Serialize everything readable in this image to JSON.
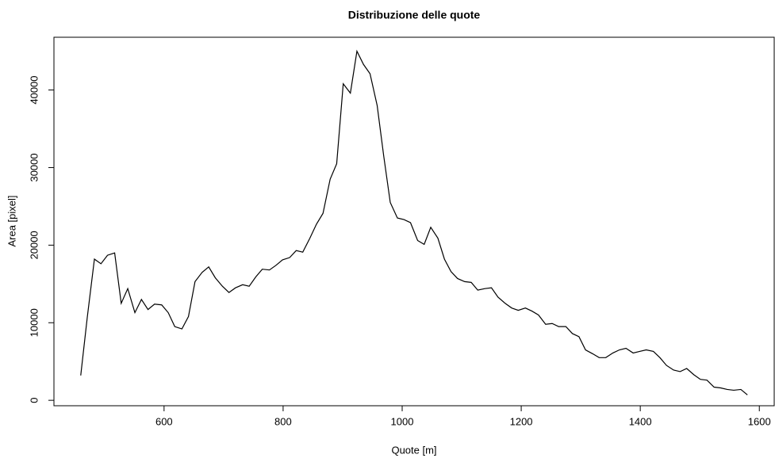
{
  "chart_data": {
    "type": "line",
    "title": "Distribuzione delle quote",
    "xlabel": "Quote [m]",
    "ylabel": "Area [pixel]",
    "x": [
      460,
      471,
      483,
      494,
      505,
      517,
      528,
      539,
      551,
      562,
      573,
      584,
      596,
      607,
      618,
      630,
      641,
      652,
      664,
      675,
      686,
      698,
      709,
      720,
      732,
      743,
      754,
      765,
      777,
      788,
      799,
      811,
      822,
      833,
      845,
      856,
      867,
      879,
      890,
      901,
      913,
      924,
      935,
      946,
      958,
      969,
      980,
      992,
      1003,
      1014,
      1026,
      1037,
      1048,
      1060,
      1071,
      1082,
      1093,
      1105,
      1116,
      1127,
      1139,
      1150,
      1161,
      1173,
      1184,
      1195,
      1207,
      1218,
      1229,
      1241,
      1252,
      1263,
      1275,
      1286,
      1297,
      1308,
      1320,
      1331,
      1342,
      1354,
      1365,
      1376,
      1388,
      1399,
      1410,
      1422,
      1433,
      1444,
      1456,
      1467,
      1478,
      1490,
      1501,
      1512,
      1524,
      1535,
      1546,
      1557,
      1569,
      1580
    ],
    "series": [
      {
        "name": "Area",
        "color": "#000000",
        "values": [
          3200,
          10700,
          18200,
          17600,
          18700,
          19000,
          12500,
          14400,
          11300,
          13000,
          11700,
          12400,
          12300,
          11300,
          9500,
          9200,
          10800,
          15300,
          16500,
          17200,
          15800,
          14700,
          13900,
          14500,
          14900,
          14700,
          15900,
          16900,
          16800,
          17400,
          18100,
          18400,
          19300,
          19100,
          20900,
          22700,
          24100,
          28500,
          30500,
          40800,
          39600,
          45000,
          43300,
          42100,
          38000,
          31500,
          25500,
          23500,
          23300,
          22900,
          20600,
          20100,
          22300,
          20900,
          18200,
          16600,
          15700,
          15300,
          15200,
          14200,
          14400,
          14500,
          13300,
          12500,
          11900,
          11600,
          11900,
          11500,
          11000,
          9800,
          9900,
          9500,
          9500,
          8600,
          8200,
          6500,
          6000,
          5500,
          5500,
          6100,
          6500,
          6700,
          6100,
          6300,
          6500,
          6300,
          5500,
          4500,
          3900,
          3700,
          4100,
          3300,
          2700,
          2600,
          1700,
          1600,
          1400,
          1300,
          1400,
          700
        ]
      }
    ],
    "xlim": [
      415,
      1625
    ],
    "xticks": [
      600,
      800,
      1000,
      1200,
      1400,
      1600
    ],
    "ylim": [
      -700,
      46800
    ],
    "yticks": [
      0,
      10000,
      20000,
      30000,
      40000
    ],
    "grid": false
  }
}
